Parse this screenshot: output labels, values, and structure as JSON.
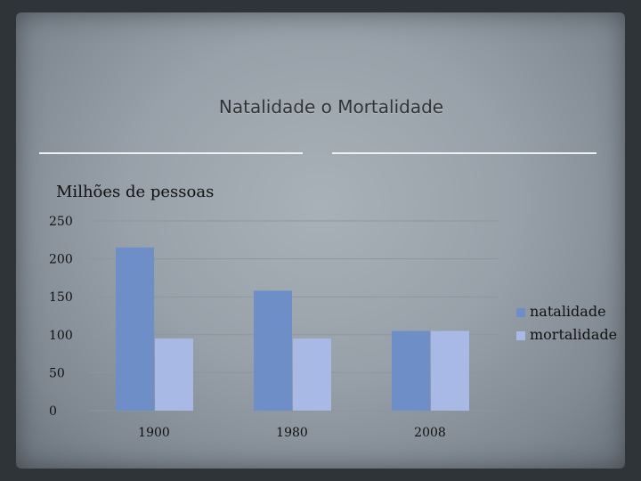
{
  "title": "Natalidade o Mortalidade",
  "chart_data": {
    "type": "bar",
    "title": "",
    "ylabel": "Milhões de pessoas",
    "xlabel": "",
    "categories": [
      "1900",
      "1980",
      "2008"
    ],
    "series": [
      {
        "name": "natalidade",
        "values": [
          215,
          158,
          105
        ],
        "color": "#6e8ec8"
      },
      {
        "name": "mortalidade",
        "values": [
          95,
          95,
          105
        ],
        "color": "#a9b9e6"
      }
    ],
    "ylim": [
      0,
      250
    ],
    "yticks": [
      "0",
      "50",
      "100",
      "150",
      "200",
      "250"
    ],
    "grid": true,
    "legend": "right"
  }
}
